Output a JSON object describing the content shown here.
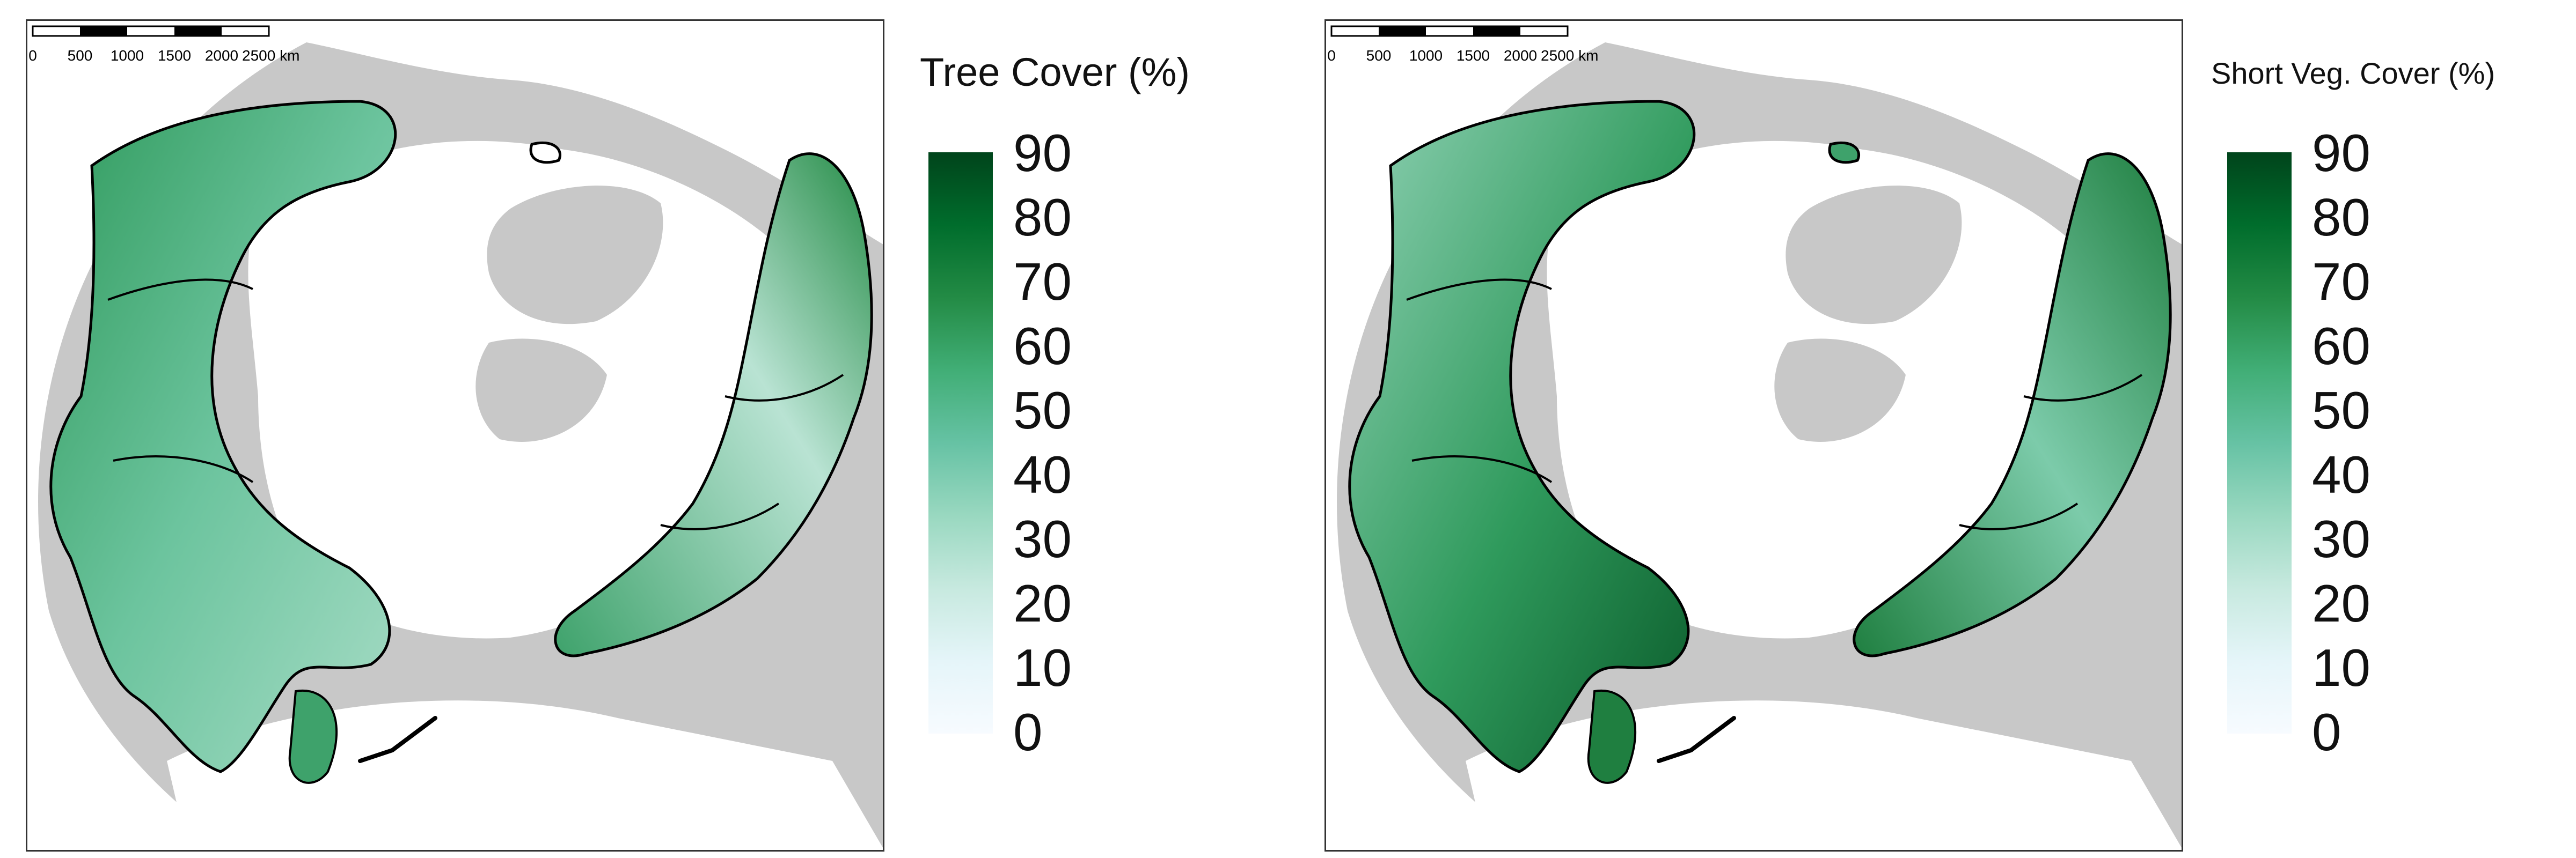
{
  "panels": [
    {
      "legend_title": "Tree Cover (%)",
      "colorbar_ticks": [
        "90",
        "80",
        "70",
        "60",
        "50",
        "40",
        "30",
        "20",
        "10",
        "0"
      ],
      "colorbar_colors": [
        "#f7fbff",
        "#e5f5f9",
        "#c7e9df",
        "#99d8c0",
        "#66c2a4",
        "#41ae76",
        "#238b45",
        "#006d2c",
        "#00441b"
      ],
      "scalebar_labels": [
        "0",
        "500",
        "1000",
        "1500",
        "2000",
        "2500 km"
      ]
    },
    {
      "legend_title": "Short Veg. Cover (%)",
      "colorbar_ticks": [
        "90",
        "80",
        "70",
        "60",
        "50",
        "40",
        "30",
        "20",
        "10",
        "0"
      ],
      "colorbar_colors": [
        "#f7fbff",
        "#e5f5f9",
        "#c7e9df",
        "#99d8c0",
        "#66c2a4",
        "#41ae76",
        "#238b45",
        "#006d2c",
        "#00441b"
      ],
      "scalebar_labels": [
        "0",
        "500",
        "1000",
        "1500",
        "2000",
        "2500 km"
      ]
    }
  ],
  "map": {
    "land_color": "#c8c8c8",
    "boundary_color": "#000000",
    "ocean_color": "#ffffff"
  }
}
